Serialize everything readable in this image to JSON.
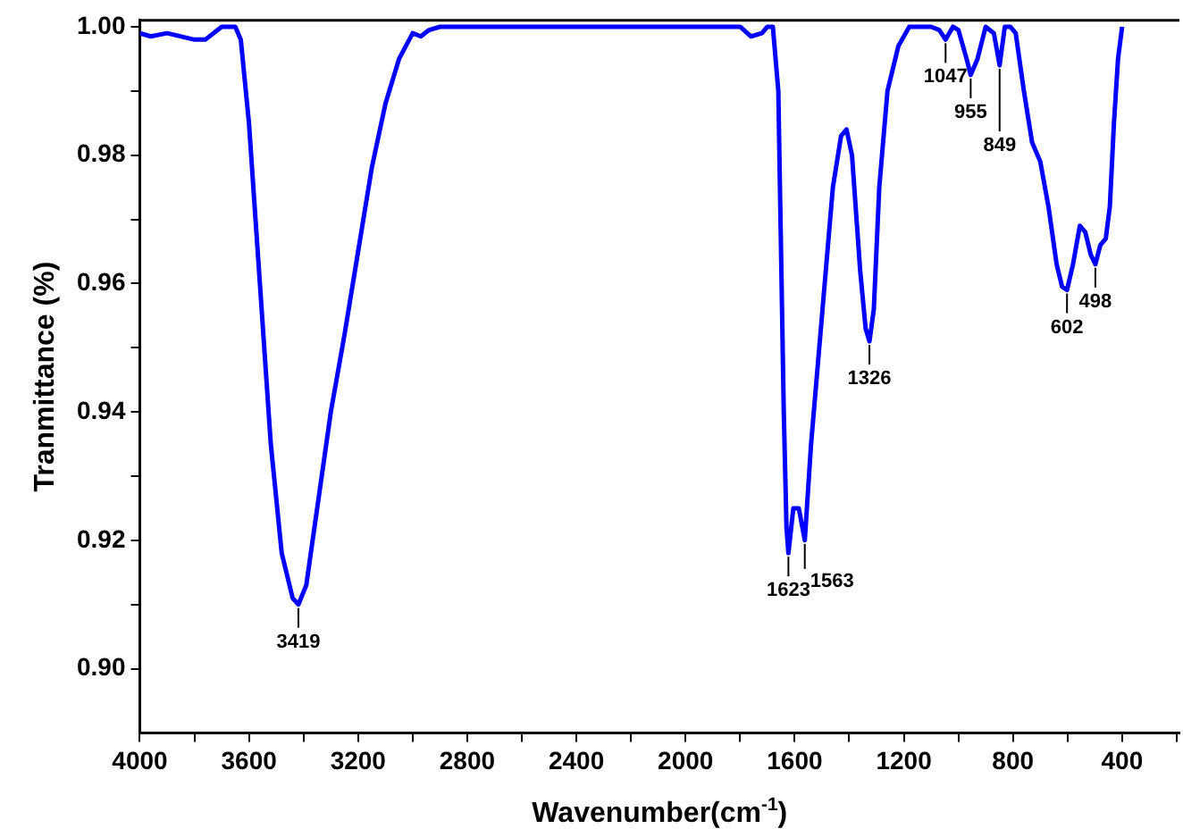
{
  "chart_data": {
    "type": "line",
    "xlabel": "Wavenumber(cm$^{-1}$)",
    "ylabel": "Tranmittance (%)",
    "xlim": [
      4000,
      190
    ],
    "ylim": [
      0.89,
      1.001
    ],
    "xticks": [
      4000,
      {
        "value": 3800,
        "label": null
      },
      3600,
      {
        "value": 3400,
        "label": null
      },
      3200,
      {
        "value": 3000,
        "label": null
      },
      2800,
      {
        "value": 2600,
        "label": null
      },
      2400,
      {
        "value": 2200,
        "label": null
      },
      2000,
      {
        "value": 1800,
        "label": null
      },
      1600,
      {
        "value": 1400,
        "label": null
      },
      1200,
      {
        "value": 1000,
        "label": null
      },
      800,
      {
        "value": 600,
        "label": null
      },
      400,
      {
        "value": 200,
        "label": null
      }
    ],
    "yticks": [
      {
        "value": 0.9,
        "label": "0.90"
      },
      {
        "value": 0.91,
        "label": null
      },
      {
        "value": 0.92,
        "label": "0.92"
      },
      {
        "value": 0.93,
        "label": null
      },
      {
        "value": 0.94,
        "label": "0.94"
      },
      {
        "value": 0.95,
        "label": null
      },
      {
        "value": 0.96,
        "label": "0.96"
      },
      {
        "value": 0.97,
        "label": null
      },
      {
        "value": 0.98,
        "label": "0.98"
      },
      {
        "value": 0.99,
        "label": null
      },
      {
        "value": 1.0,
        "label": "1.00"
      }
    ],
    "grid": false,
    "legend": false,
    "marker": "none",
    "line_style": "solid",
    "series": [
      {
        "color": "#0000ff",
        "x": [
          4000,
          3960,
          3900,
          3800,
          3760,
          3700,
          3650,
          3630,
          3600,
          3560,
          3520,
          3480,
          3440,
          3419,
          3390,
          3350,
          3300,
          3250,
          3200,
          3150,
          3100,
          3050,
          3000,
          2970,
          2940,
          2900,
          1800,
          1760,
          1720,
          1700,
          1680,
          1660,
          1640,
          1630,
          1623,
          1605,
          1585,
          1563,
          1540,
          1500,
          1460,
          1430,
          1410,
          1390,
          1360,
          1340,
          1326,
          1310,
          1290,
          1260,
          1220,
          1180,
          1100,
          1070,
          1047,
          1020,
          1000,
          970,
          955,
          930,
          900,
          870,
          849,
          830,
          810,
          790,
          760,
          730,
          700,
          670,
          640,
          620,
          602,
          580,
          555,
          535,
          515,
          498,
          480,
          460,
          445,
          430,
          415,
          400
        ],
        "values": [
          0.999,
          0.9985,
          0.999,
          0.998,
          0.998,
          1.0,
          1.0,
          0.998,
          0.985,
          0.96,
          0.935,
          0.918,
          0.911,
          0.91,
          0.913,
          0.925,
          0.94,
          0.952,
          0.965,
          0.978,
          0.988,
          0.995,
          0.999,
          0.9985,
          0.9995,
          1.0,
          1.0,
          0.9985,
          0.999,
          1.0,
          1.0,
          0.99,
          0.94,
          0.922,
          0.918,
          0.925,
          0.925,
          0.92,
          0.935,
          0.955,
          0.975,
          0.983,
          0.984,
          0.98,
          0.962,
          0.953,
          0.951,
          0.956,
          0.975,
          0.99,
          0.997,
          1.0,
          1.0,
          0.9995,
          0.998,
          1.0,
          0.9995,
          0.995,
          0.9925,
          0.995,
          1.0,
          0.999,
          0.994,
          1.0,
          1.0,
          0.999,
          0.99,
          0.982,
          0.979,
          0.972,
          0.963,
          0.9595,
          0.959,
          0.963,
          0.969,
          0.968,
          0.9645,
          0.963,
          0.966,
          0.967,
          0.972,
          0.985,
          0.995,
          1.0
        ]
      }
    ],
    "annotations": [
      {
        "text": "3419",
        "x": 3419,
        "y": 0.91
      },
      {
        "text": "1623",
        "x": 1623,
        "y": 0.918
      },
      {
        "text": "1563",
        "x": 1563,
        "y": 0.92
      },
      {
        "text": "1326",
        "x": 1326,
        "y": 0.951
      },
      {
        "text": "1047",
        "x": 1047,
        "y": 0.998
      },
      {
        "text": "955",
        "x": 955,
        "y": 0.9925
      },
      {
        "text": "849",
        "x": 849,
        "y": 0.994
      },
      {
        "text": "602",
        "x": 602,
        "y": 0.959
      },
      {
        "text": "498",
        "x": 498,
        "y": 0.963
      }
    ]
  }
}
